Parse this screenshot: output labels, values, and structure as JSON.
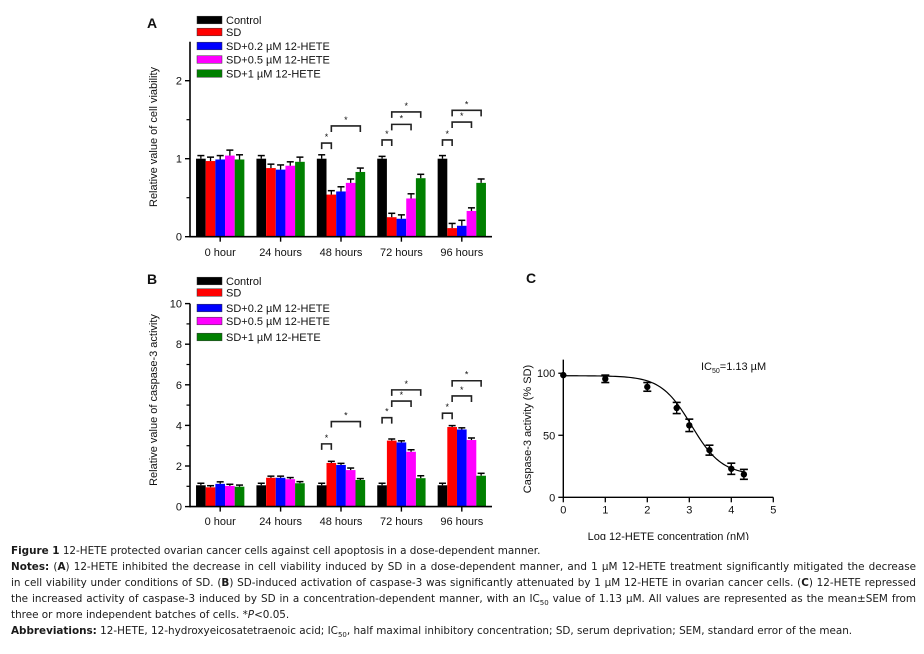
{
  "chart_data": [
    {
      "panel_label": "A",
      "type": "bar",
      "title": "",
      "xlabel": "",
      "ylabel": "Relative value of cell viability",
      "categories": [
        "0 hour",
        "24 hours",
        "48 hours",
        "72 hours",
        "96 hours"
      ],
      "ylim": [
        0,
        2.5
      ],
      "yticks": [
        0,
        1,
        2
      ],
      "minor_yticks": [
        0.5,
        1.5
      ],
      "grid": false,
      "legend": {
        "position": "top-left"
      },
      "series": [
        {
          "name": "Control",
          "color": "#000000",
          "values": [
            1.0,
            1.0,
            1.0,
            1.0,
            1.0
          ],
          "errors": [
            0.04,
            0.04,
            0.05,
            0.03,
            0.04
          ]
        },
        {
          "name": "SD",
          "color": "#ff0000",
          "values": [
            0.97,
            0.88,
            0.54,
            0.25,
            0.11
          ],
          "errors": [
            0.05,
            0.05,
            0.05,
            0.05,
            0.06
          ]
        },
        {
          "name": "SD+0.2 µM 12-HETE",
          "color": "#0000ff",
          "values": [
            0.99,
            0.86,
            0.58,
            0.23,
            0.14
          ],
          "errors": [
            0.05,
            0.06,
            0.06,
            0.05,
            0.07
          ]
        },
        {
          "name": "SD+0.5 µM 12-HETE",
          "color": "#ff00ff",
          "values": [
            1.04,
            0.91,
            0.69,
            0.49,
            0.33
          ],
          "errors": [
            0.07,
            0.05,
            0.05,
            0.06,
            0.04
          ]
        },
        {
          "name": "SD+1 µM 12-HETE",
          "color": "#008000",
          "values": [
            0.99,
            0.96,
            0.83,
            0.75,
            0.69
          ],
          "errors": [
            0.06,
            0.06,
            0.05,
            0.05,
            0.05
          ]
        }
      ],
      "significance": [
        {
          "category": 2,
          "from": 0,
          "to": 1,
          "level": 1.2,
          "label": "*"
        },
        {
          "category": 2,
          "from": 1,
          "to": 4,
          "level": 1.42,
          "label": "*"
        },
        {
          "category": 3,
          "from": 0,
          "to": 1,
          "level": 1.24,
          "label": "*"
        },
        {
          "category": 3,
          "from": 1,
          "to": 3,
          "level": 1.44,
          "label": "*"
        },
        {
          "category": 3,
          "from": 1,
          "to": 4,
          "level": 1.6,
          "label": "*"
        },
        {
          "category": 4,
          "from": 0,
          "to": 1,
          "level": 1.24,
          "label": "*"
        },
        {
          "category": 4,
          "from": 1,
          "to": 3,
          "level": 1.47,
          "label": "*"
        },
        {
          "category": 4,
          "from": 1,
          "to": 4,
          "level": 1.62,
          "label": "*"
        }
      ]
    },
    {
      "panel_label": "B",
      "type": "bar",
      "title": "",
      "xlabel": "",
      "ylabel": "Relative value of caspase-3 activity",
      "categories": [
        "0 hour",
        "24 hours",
        "48 hours",
        "72 hours",
        "96 hours"
      ],
      "ylim": [
        0,
        10
      ],
      "yticks": [
        0,
        2,
        4,
        6,
        8,
        10
      ],
      "minor_yticks": [
        1,
        3,
        5,
        7,
        9
      ],
      "grid": false,
      "legend": {
        "position": "top-left"
      },
      "series": [
        {
          "name": "Control",
          "color": "#000000",
          "values": [
            1.05,
            1.05,
            1.05,
            1.05,
            1.05
          ],
          "errors": [
            0.1,
            0.1,
            0.1,
            0.1,
            0.1
          ]
        },
        {
          "name": "SD",
          "color": "#ff0000",
          "values": [
            0.95,
            1.42,
            2.15,
            3.25,
            3.92
          ],
          "errors": [
            0.08,
            0.08,
            0.08,
            0.08,
            0.07
          ]
        },
        {
          "name": "SD+0.2 µM 12-HETE",
          "color": "#0000ff",
          "values": [
            1.12,
            1.42,
            2.05,
            3.16,
            3.8
          ],
          "errors": [
            0.1,
            0.08,
            0.08,
            0.08,
            0.08
          ]
        },
        {
          "name": "SD+0.5 µM 12-HETE",
          "color": "#ff00ff",
          "values": [
            1.02,
            1.35,
            1.8,
            2.7,
            3.28
          ],
          "errors": [
            0.08,
            0.08,
            0.1,
            0.1,
            0.1
          ]
        },
        {
          "name": "SD+1 µM 12-HETE",
          "color": "#008000",
          "values": [
            0.98,
            1.15,
            1.31,
            1.4,
            1.52
          ],
          "errors": [
            0.08,
            0.08,
            0.07,
            0.12,
            0.12
          ]
        }
      ],
      "significance": [
        {
          "category": 2,
          "from": 0,
          "to": 1,
          "level": 3.09,
          "label": "*"
        },
        {
          "category": 2,
          "from": 1,
          "to": 4,
          "level": 4.19,
          "label": "*"
        },
        {
          "category": 3,
          "from": 0,
          "to": 1,
          "level": 4.38,
          "label": "*"
        },
        {
          "category": 3,
          "from": 1,
          "to": 3,
          "level": 5.2,
          "label": "*"
        },
        {
          "category": 3,
          "from": 1,
          "to": 4,
          "level": 5.75,
          "label": "*"
        },
        {
          "category": 4,
          "from": 0,
          "to": 1,
          "level": 4.6,
          "label": "*"
        },
        {
          "category": 4,
          "from": 1,
          "to": 3,
          "level": 5.45,
          "label": "*"
        },
        {
          "category": 4,
          "from": 1,
          "to": 4,
          "level": 6.2,
          "label": "*"
        }
      ]
    },
    {
      "panel_label": "C",
      "type": "scatter",
      "title": "",
      "xlabel": "Log 12-HETE concentration (nM)",
      "ylabel": "Caspase-3 activity (% SD)",
      "xlim": [
        0,
        5
      ],
      "ylim": [
        0,
        111
      ],
      "xticks": [
        0,
        1,
        2,
        3,
        4,
        5
      ],
      "yticks": [
        0,
        50,
        100
      ],
      "grid": false,
      "points": [
        {
          "x": 0,
          "y": 98.5,
          "err": 0
        },
        {
          "x": 1,
          "y": 95.5,
          "err": 3
        },
        {
          "x": 2,
          "y": 89,
          "err": 3.5
        },
        {
          "x": 2.7,
          "y": 72,
          "err": 4.5
        },
        {
          "x": 3,
          "y": 58,
          "err": 5
        },
        {
          "x": 3.48,
          "y": 38,
          "err": 4
        },
        {
          "x": 4,
          "y": 23,
          "err": 4.5
        },
        {
          "x": 4.3,
          "y": 18.5,
          "err": 4
        }
      ],
      "fit": {
        "model": "four-parameter logistic",
        "top": 98,
        "bottom": 18,
        "log_ic50": 3.05,
        "hill_slope": -1.2,
        "x_range": [
          0,
          4.3
        ]
      },
      "annotation": {
        "prefix": "IC",
        "subscript": "50",
        "suffix": "=1.13 µM",
        "position": "top-right"
      }
    }
  ],
  "caption": {
    "lines": [
      {
        "segments": [
          {
            "text": "Figure 1",
            "style": "bold"
          },
          {
            "text": " 12-HETE protected ovarian cancer cells against cell apoptosis in a dose-dependent manner.",
            "style": "normal"
          }
        ]
      },
      {
        "segments": [
          {
            "text": "Notes:",
            "style": "bold"
          },
          {
            "text": " (",
            "style": "normal"
          },
          {
            "text": "A",
            "style": "bold"
          },
          {
            "text": ") 12-HETE inhibited the decrease in cell viability induced by SD in a dose-dependent manner, and 1 µM 12-HETE treatment significantly mitigated the decrease",
            "style": "normal"
          }
        ]
      },
      {
        "segments": [
          {
            "text": "in cell viability under conditions of SD. (",
            "style": "normal"
          },
          {
            "text": "B",
            "style": "bold"
          },
          {
            "text": ") SD-induced activation of caspase-3 was significantly attenuated by 1 µM 12-HETE in ovarian cancer cells. (",
            "style": "normal"
          },
          {
            "text": "C",
            "style": "bold"
          },
          {
            "text": ") 12-HETE repressed",
            "style": "normal"
          }
        ]
      },
      {
        "segments": [
          {
            "text": "the increased activity of caspase-3 induced by SD in a concentration-dependent manner, with an IC",
            "style": "normal"
          },
          {
            "text": "50",
            "style": "sub"
          },
          {
            "text": " value of 1.13 µM. All values are represented as the mean±SEM from",
            "style": "normal"
          }
        ]
      },
      {
        "segments": [
          {
            "text": "three or more independent batches of cells. *",
            "style": "normal"
          },
          {
            "text": "P",
            "style": "italic"
          },
          {
            "text": "<0.05.",
            "style": "normal"
          }
        ]
      },
      {
        "segments": [
          {
            "text": "Abbreviations:",
            "style": "bold"
          },
          {
            "text": " 12-HETE, 12-hydroxyeicosatetraenoic acid; IC",
            "style": "normal"
          },
          {
            "text": "50",
            "style": "sub"
          },
          {
            "text": ", half maximal inhibitory concentration; SD, serum deprivation; SEM, standard error of the mean.",
            "style": "normal"
          }
        ]
      }
    ]
  }
}
